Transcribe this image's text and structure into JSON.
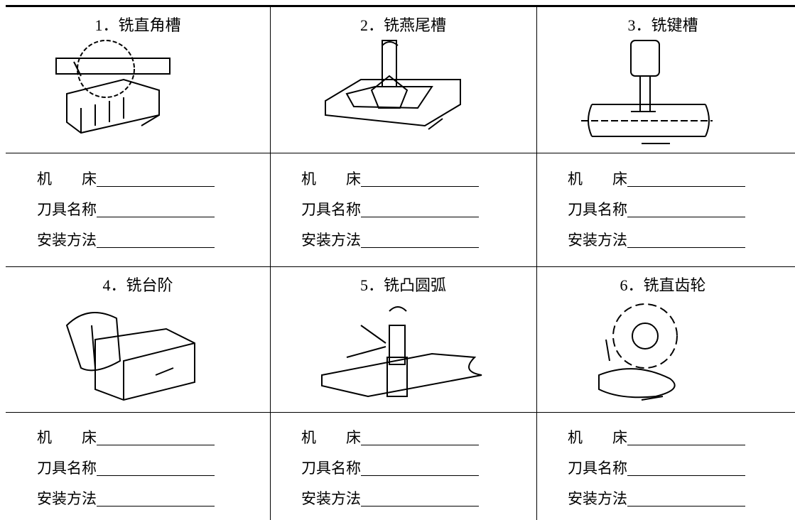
{
  "cells": [
    {
      "title": "1．铣直角槽",
      "fields": [
        "机　　床",
        "刀具名称",
        "安装方法"
      ]
    },
    {
      "title": "2．铣燕尾槽",
      "fields": [
        "机　　床",
        "刀具名称",
        "安装方法"
      ]
    },
    {
      "title": "3．铣键槽",
      "fields": [
        "机　　床",
        "刀具名称",
        "安装方法"
      ]
    },
    {
      "title": "4．铣台阶",
      "fields": [
        "机　　床",
        "刀具名称",
        "安装方法"
      ]
    },
    {
      "title": "5．铣凸圆弧",
      "fields": [
        "机　　床",
        "刀具名称",
        "安装方法"
      ]
    },
    {
      "title": "6．铣直齿轮",
      "fields": [
        "机　　床",
        "刀具名称",
        "安装方法"
      ]
    }
  ]
}
